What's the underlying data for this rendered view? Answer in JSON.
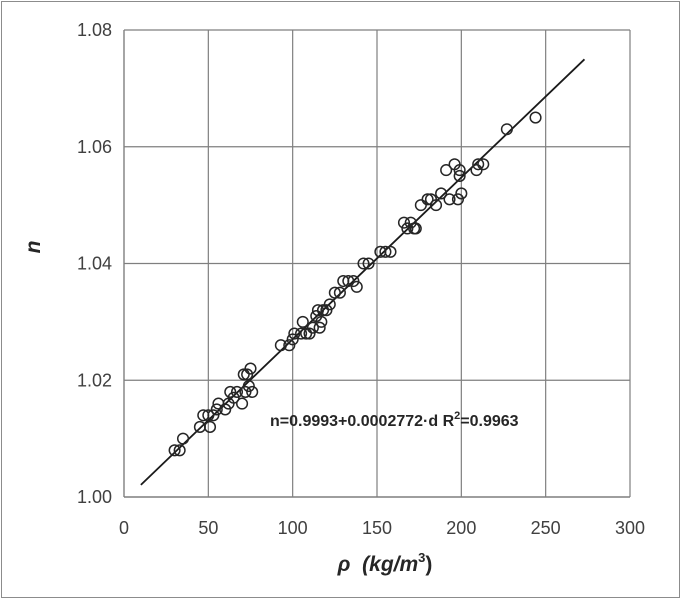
{
  "chart_data": {
    "type": "scatter",
    "xlabel_main": "ρ",
    "xlabel_units_pre": "(kg/m",
    "xlabel_units_sup": "3",
    "xlabel_units_post": ")",
    "ylabel": "n",
    "xlim": [
      0,
      300
    ],
    "ylim": [
      1.0,
      1.08
    ],
    "x_ticks": [
      0,
      50,
      100,
      150,
      200,
      250,
      300
    ],
    "y_ticks": [
      "1.00",
      "1.02",
      "1.04",
      "1.06",
      "1.08"
    ],
    "grid": true,
    "annotation": {
      "main": "n=0.9993+0.0002772·d  R",
      "sup": "2",
      "post": "=0.9963"
    },
    "fit_line": {
      "intercept": 0.9993,
      "slope": 0.0002772,
      "x_range": [
        10,
        273
      ]
    },
    "points": [
      {
        "x": 30,
        "y": 1.008
      },
      {
        "x": 33,
        "y": 1.008
      },
      {
        "x": 35,
        "y": 1.01
      },
      {
        "x": 45,
        "y": 1.012
      },
      {
        "x": 47,
        "y": 1.014
      },
      {
        "x": 50,
        "y": 1.014
      },
      {
        "x": 51,
        "y": 1.012
      },
      {
        "x": 53,
        "y": 1.014
      },
      {
        "x": 55,
        "y": 1.015
      },
      {
        "x": 56,
        "y": 1.016
      },
      {
        "x": 60,
        "y": 1.015
      },
      {
        "x": 62,
        "y": 1.016
      },
      {
        "x": 63,
        "y": 1.018
      },
      {
        "x": 65,
        "y": 1.017
      },
      {
        "x": 67,
        "y": 1.018
      },
      {
        "x": 70,
        "y": 1.016
      },
      {
        "x": 71,
        "y": 1.021
      },
      {
        "x": 72,
        "y": 1.018
      },
      {
        "x": 73,
        "y": 1.021
      },
      {
        "x": 74,
        "y": 1.019
      },
      {
        "x": 75,
        "y": 1.022
      },
      {
        "x": 76,
        "y": 1.018
      },
      {
        "x": 93,
        "y": 1.026
      },
      {
        "x": 98,
        "y": 1.026
      },
      {
        "x": 100,
        "y": 1.027
      },
      {
        "x": 101,
        "y": 1.028
      },
      {
        "x": 105,
        "y": 1.028
      },
      {
        "x": 106,
        "y": 1.03
      },
      {
        "x": 108,
        "y": 1.028
      },
      {
        "x": 110,
        "y": 1.028
      },
      {
        "x": 112,
        "y": 1.029
      },
      {
        "x": 114,
        "y": 1.031
      },
      {
        "x": 115,
        "y": 1.032
      },
      {
        "x": 116,
        "y": 1.029
      },
      {
        "x": 117,
        "y": 1.03
      },
      {
        "x": 118,
        "y": 1.032
      },
      {
        "x": 120,
        "y": 1.032
      },
      {
        "x": 122,
        "y": 1.033
      },
      {
        "x": 125,
        "y": 1.035
      },
      {
        "x": 128,
        "y": 1.035
      },
      {
        "x": 130,
        "y": 1.037
      },
      {
        "x": 133,
        "y": 1.037
      },
      {
        "x": 136,
        "y": 1.037
      },
      {
        "x": 138,
        "y": 1.036
      },
      {
        "x": 142,
        "y": 1.04
      },
      {
        "x": 145,
        "y": 1.04
      },
      {
        "x": 152,
        "y": 1.042
      },
      {
        "x": 155,
        "y": 1.042
      },
      {
        "x": 158,
        "y": 1.042
      },
      {
        "x": 166,
        "y": 1.047
      },
      {
        "x": 168,
        "y": 1.046
      },
      {
        "x": 170,
        "y": 1.047
      },
      {
        "x": 172,
        "y": 1.046
      },
      {
        "x": 173,
        "y": 1.046
      },
      {
        "x": 176,
        "y": 1.05
      },
      {
        "x": 180,
        "y": 1.051
      },
      {
        "x": 182,
        "y": 1.051
      },
      {
        "x": 185,
        "y": 1.05
      },
      {
        "x": 188,
        "y": 1.052
      },
      {
        "x": 191,
        "y": 1.056
      },
      {
        "x": 193,
        "y": 1.051
      },
      {
        "x": 196,
        "y": 1.057
      },
      {
        "x": 198,
        "y": 1.051
      },
      {
        "x": 199,
        "y": 1.055
      },
      {
        "x": 199,
        "y": 1.056
      },
      {
        "x": 200,
        "y": 1.052
      },
      {
        "x": 209,
        "y": 1.056
      },
      {
        "x": 210,
        "y": 1.057
      },
      {
        "x": 213,
        "y": 1.057
      },
      {
        "x": 227,
        "y": 1.063
      },
      {
        "x": 244,
        "y": 1.065
      }
    ]
  },
  "colors": {
    "marker_stroke": "#262626",
    "line": "#1a1a1a",
    "grid": "#7f7f7f",
    "axis": "#7f7f7f",
    "frame": "#8c8c8c"
  }
}
